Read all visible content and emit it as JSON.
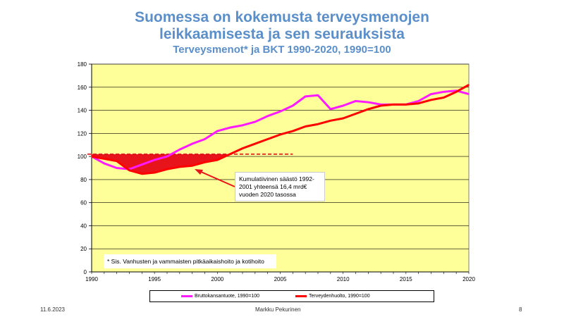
{
  "slide": {
    "title_line1": "Suomessa on kokemusta terveysmenojen",
    "title_line2": "leikkaamisesta ja sen seurauksista",
    "subtitle": "Terveysmenot* ja BKT 1990-2020, 1990=100",
    "footer_date": "11.6.2023",
    "footer_author": "Markku  Pekurinen",
    "page_number": "8"
  },
  "annotation": {
    "text": "Kumulatiivinen säästö 1992-2001 yhteensä 16,4 mrd€ vuoden 2020 tasossa"
  },
  "footnote": "* Sis. Vanhusten ja vammaisten pitkäaikaishoito ja kotihoito",
  "chart_data": {
    "type": "line",
    "title": "Terveysmenot* ja BKT 1990-2020, 1990=100",
    "x_range": [
      1990,
      2020
    ],
    "ylim": [
      0,
      180
    ],
    "y_ticks": [
      0,
      20,
      40,
      60,
      80,
      100,
      120,
      140,
      160,
      180
    ],
    "x_ticks": [
      1990,
      1995,
      2000,
      2005,
      2010,
      2015,
      2020
    ],
    "grid": true,
    "plot_background": "#ffff99",
    "reference_line": {
      "value": 102,
      "x_from": 1990,
      "x_to": 2006,
      "style": "dashed",
      "color": "#d7191c"
    },
    "shaded_gap": {
      "from": 1990,
      "to": 2001,
      "color": "#e8141c"
    },
    "series": [
      {
        "name": "Bruttokansantuote, 1990=100",
        "color": "#ff1aff",
        "x": [
          1990,
          1991,
          1992,
          1993,
          1994,
          1995,
          1996,
          1997,
          1998,
          1999,
          2000,
          2001,
          2002,
          2003,
          2004,
          2005,
          2006,
          2007,
          2008,
          2009,
          2010,
          2011,
          2012,
          2013,
          2014,
          2015,
          2016,
          2017,
          2018,
          2019,
          2020
        ],
        "values": [
          100,
          94,
          90,
          89,
          93,
          97,
          100,
          106,
          111,
          115,
          122,
          125,
          127,
          130,
          135,
          139,
          144,
          152,
          153,
          141,
          144,
          148,
          147,
          145,
          145,
          145,
          148,
          154,
          156,
          157,
          154
        ]
      },
      {
        "name": "Terveydenhuolto, 1990=100",
        "color": "#ff0000",
        "x": [
          1990,
          1991,
          1992,
          1993,
          1994,
          1995,
          1996,
          1997,
          1998,
          1999,
          2000,
          2001,
          2002,
          2003,
          2004,
          2005,
          2006,
          2007,
          2008,
          2009,
          2010,
          2011,
          2012,
          2013,
          2014,
          2015,
          2016,
          2017,
          2018,
          2019,
          2020
        ],
        "values": [
          100,
          98,
          96,
          88,
          85,
          86,
          89,
          91,
          92,
          95,
          97,
          102,
          107,
          111,
          115,
          119,
          122,
          126,
          128,
          131,
          133,
          137,
          141,
          144,
          145,
          145,
          146,
          149,
          151,
          156,
          162
        ]
      }
    ]
  }
}
